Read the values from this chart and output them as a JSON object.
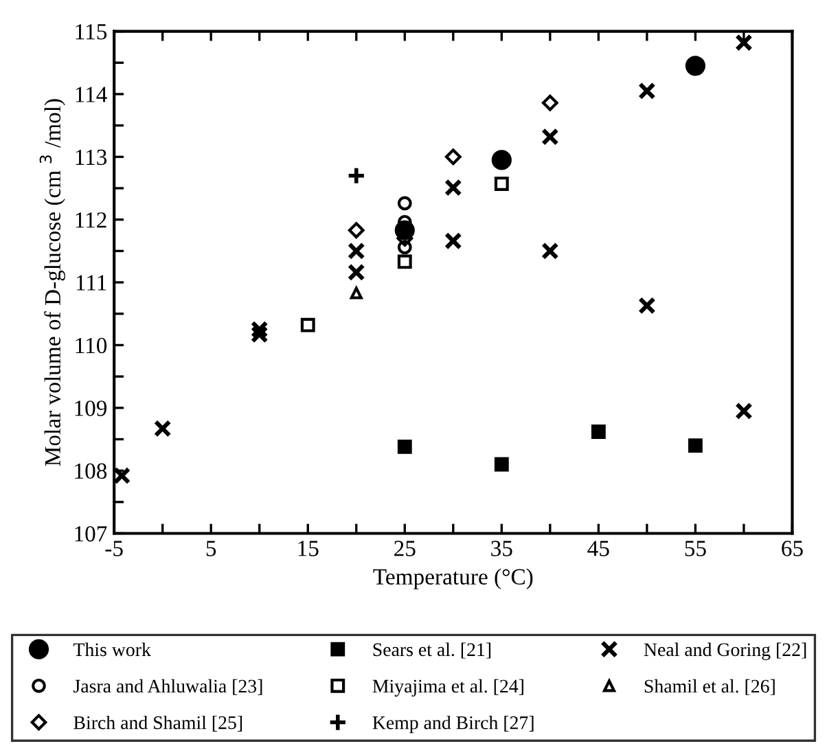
{
  "chart_data": {
    "type": "scatter",
    "xlabel": "Temperature (°C)",
    "ylabel": "Molar volume of D-glucose (cm $^{3}$ /mol)",
    "xlim": [
      -5,
      65
    ],
    "ylim": [
      107,
      115
    ],
    "xticks": [
      -5,
      {
        "value": 0,
        "label": null
      },
      5,
      {
        "value": 10,
        "label": null
      },
      15,
      {
        "value": 20,
        "label": null
      },
      25,
      {
        "value": 30,
        "label": null
      },
      35,
      {
        "value": 40,
        "label": null
      },
      45,
      {
        "value": 50,
        "label": null
      },
      55,
      {
        "value": 60,
        "label": null
      },
      65
    ],
    "yticks": [
      107,
      {
        "value": 107.5,
        "label": null
      },
      108,
      {
        "value": 108.5,
        "label": null
      },
      109,
      {
        "value": 109.5,
        "label": null
      },
      110,
      {
        "value": 110.5,
        "label": null
      },
      111,
      {
        "value": 111.5,
        "label": null
      },
      112,
      {
        "value": 112.5,
        "label": null
      },
      113,
      {
        "value": 113.5,
        "label": null
      },
      114,
      {
        "value": 114.5,
        "label": null
      },
      115
    ],
    "grid": false,
    "legend": "bottom",
    "series": [
      {
        "name": "This work",
        "color": "#000000",
        "marker": "circle",
        "x": [
          25,
          35,
          55
        ],
        "values": [
          111.83,
          112.95,
          114.45
        ]
      },
      {
        "name": "Sears et al. [21]",
        "color": "#000000",
        "marker": "square",
        "x": [
          25,
          35,
          45,
          55
        ],
        "values": [
          108.38,
          108.1,
          108.62,
          108.4
        ]
      },
      {
        "name": "Neal and Goring [22]",
        "color": "#000000",
        "marker": "cross",
        "x": [
          -4.2,
          0,
          10,
          10,
          20,
          20,
          30,
          30,
          40,
          40,
          50,
          50,
          60,
          60
        ],
        "values": [
          107.92,
          108.67,
          110.25,
          110.17,
          111.5,
          111.16,
          112.51,
          111.66,
          113.32,
          111.5,
          114.05,
          110.63,
          114.82,
          108.95
        ]
      },
      {
        "name": "Jasra and Ahluwalia [23]",
        "color": "#000000",
        "marker": "circle",
        "x": [
          25,
          25,
          25
        ],
        "values": [
          112.26,
          111.96,
          111.56
        ]
      },
      {
        "name": "Miyajima et al. [24]",
        "color": "#000000",
        "marker": "square",
        "x": [
          15,
          25,
          35
        ],
        "values": [
          110.32,
          111.33,
          112.57
        ]
      },
      {
        "name": "Shamil et al. [26]",
        "color": "#000000",
        "marker": "triangle",
        "x": [
          20
        ],
        "values": [
          110.83
        ]
      },
      {
        "name": "Birch and Shamil [25]",
        "color": "#000000",
        "marker": "diamond",
        "x": [
          20,
          25,
          30,
          40
        ],
        "values": [
          111.83,
          111.7,
          113.0,
          113.86
        ]
      },
      {
        "name": "Kemp and Birch [27]",
        "color": "#000000",
        "marker": "plus",
        "x": [
          20
        ],
        "values": [
          112.7
        ]
      }
    ]
  }
}
